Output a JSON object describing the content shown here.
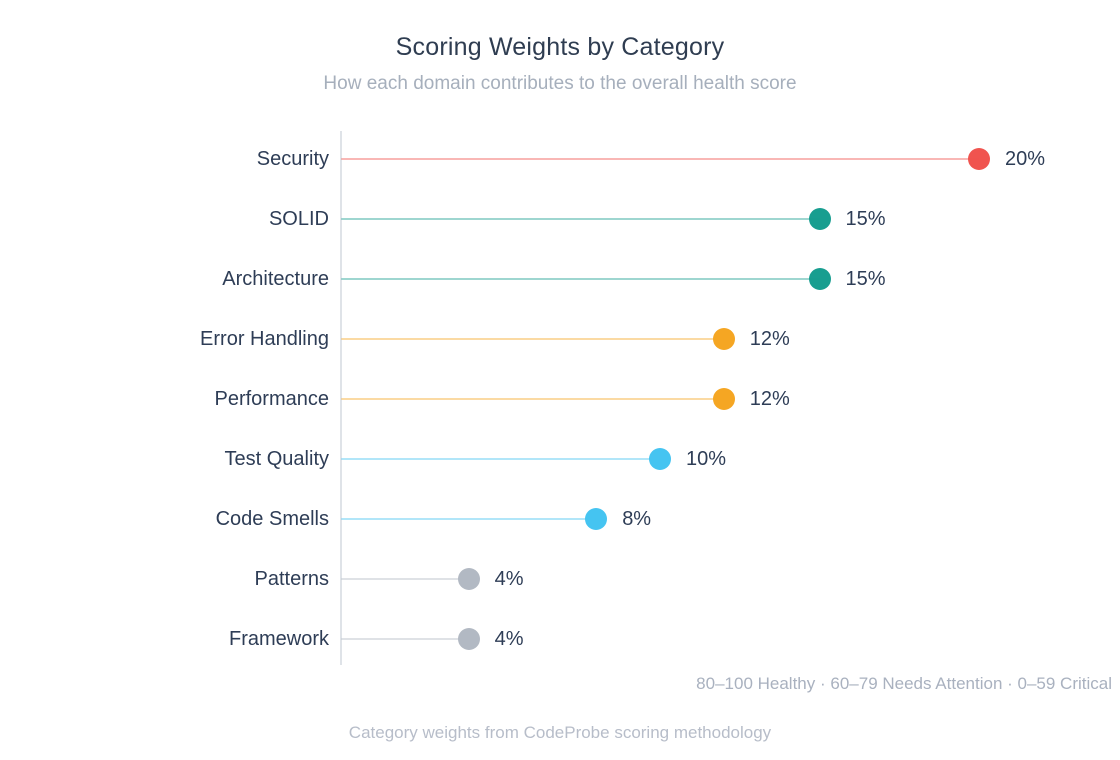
{
  "chart_data": {
    "type": "bar",
    "variant": "lollipop",
    "orientation": "horizontal",
    "title": "Scoring Weights by Category",
    "subtitle": "How each domain contributes to the overall health score",
    "categories": [
      "Security",
      "SOLID",
      "Architecture",
      "Error Handling",
      "Performance",
      "Test Quality",
      "Code Smells",
      "Patterns",
      "Framework"
    ],
    "values": [
      20,
      15,
      15,
      12,
      12,
      10,
      8,
      4,
      4
    ],
    "value_labels": [
      "20%",
      "15%",
      "15%",
      "12%",
      "12%",
      "10%",
      "8%",
      "4%",
      "4%"
    ],
    "point_colors": [
      "#f0544f",
      "#189e90",
      "#189e90",
      "#f5a623",
      "#f5a623",
      "#45c4f1",
      "#45c4f1",
      "#b2b9c3",
      "#b2b9c3"
    ],
    "unit": "%",
    "xlim": [
      0,
      22.5
    ],
    "grid": false,
    "legend": false,
    "annotation": "80–100 Healthy · 60–79 Needs Attention · 0–59 Critical",
    "caption": "Category weights from CodeProbe scoring methodology",
    "colors": {
      "title": "#2f3d51",
      "subtitle": "#a6afbc",
      "labels": "#2e3d56",
      "axis": "#dfe3e8",
      "annotation": "#a9b1bf",
      "caption": "#b7bdc9"
    }
  }
}
